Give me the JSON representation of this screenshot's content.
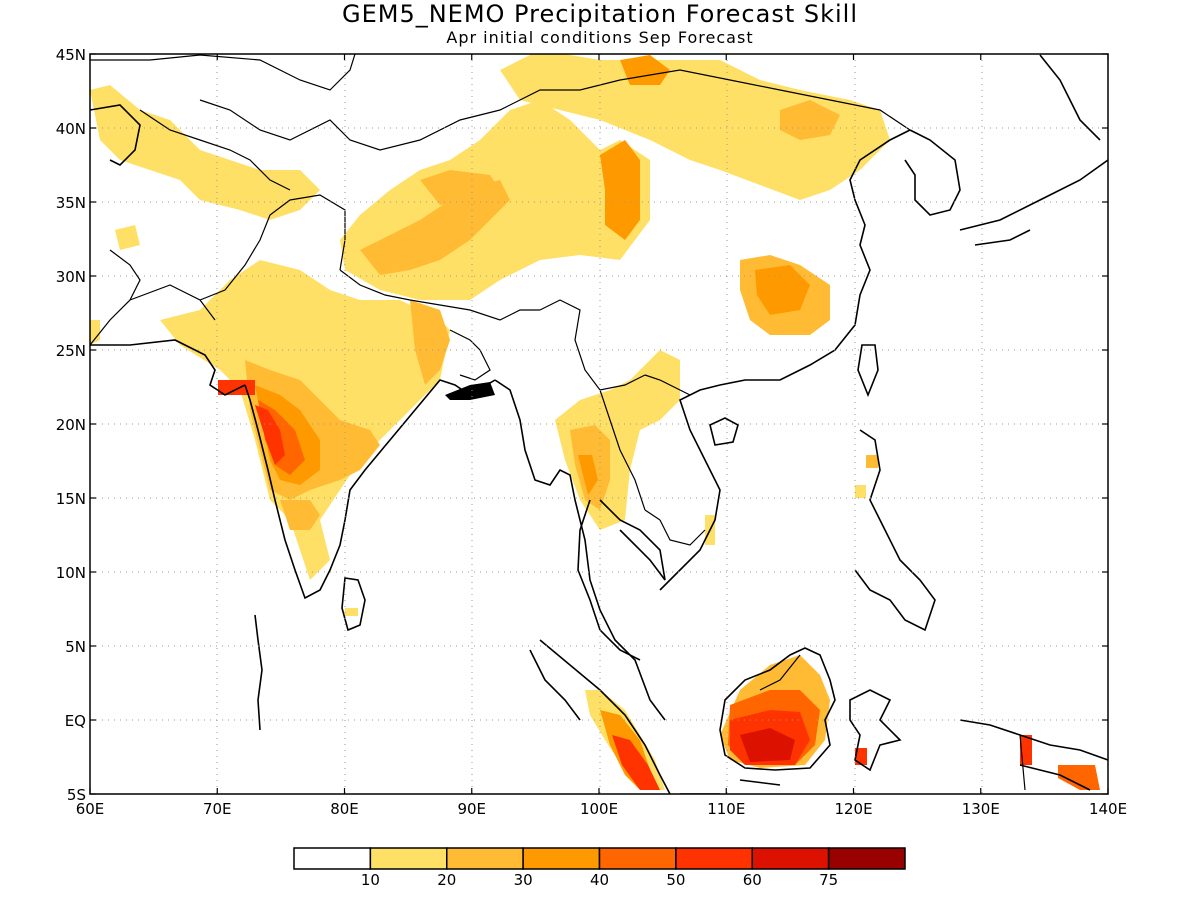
{
  "title": "GEM5_NEMO Precipitation Forecast Skill",
  "subtitle": "Apr initial conditions   Sep Forecast",
  "map": {
    "lon_range": [
      60,
      140
    ],
    "lat_range": [
      -5,
      45
    ],
    "lon_ticks": [
      "60E",
      "70E",
      "80E",
      "90E",
      "100E",
      "110E",
      "120E",
      "130E",
      "140E"
    ],
    "lat_ticks": [
      "5S",
      "EQ",
      "5N",
      "10N",
      "15N",
      "20N",
      "25N",
      "30N",
      "35N",
      "40N",
      "45N"
    ],
    "grid": "dotted",
    "coastlines": true,
    "country_borders": true
  },
  "legend": {
    "labels": [
      "10",
      "20",
      "30",
      "40",
      "50",
      "60",
      "75"
    ],
    "colors": [
      "#ffffff",
      "#ffe066",
      "#ffbb33",
      "#ff9900",
      "#ff6600",
      "#ff3300",
      "#dd1100",
      "#990000"
    ]
  },
  "skill_regions": [
    {
      "name": "western-india",
      "level": 5
    },
    {
      "name": "northern-india",
      "level": 2
    },
    {
      "name": "tibetan-plateau",
      "level": 3
    },
    {
      "name": "central-china",
      "level": 3
    },
    {
      "name": "northern-china",
      "level": 2
    },
    {
      "name": "myanmar",
      "level": 3
    },
    {
      "name": "indochina",
      "level": 2
    },
    {
      "name": "borneo",
      "level": 6
    },
    {
      "name": "sumatra",
      "level": 5
    },
    {
      "name": "new-guinea",
      "level": 5
    }
  ]
}
